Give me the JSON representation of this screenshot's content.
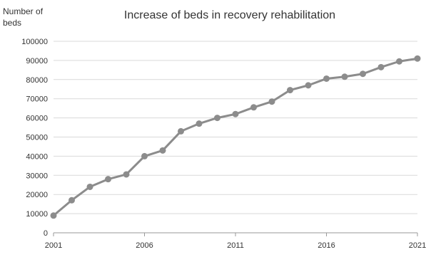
{
  "chart_data": {
    "type": "line",
    "title": "Increase of beds in recovery rehabilitation",
    "ylabel_lines": [
      "Number of",
      "beds"
    ],
    "xlabel": "",
    "ylim": [
      0,
      100000
    ],
    "y_ticks": [
      0,
      10000,
      20000,
      30000,
      40000,
      50000,
      60000,
      70000,
      80000,
      90000,
      100000
    ],
    "x_ticks": [
      2001,
      2006,
      2011,
      2016,
      2021
    ],
    "xlim": [
      2001,
      2021
    ],
    "grid": true,
    "legend": "none",
    "series": [
      {
        "color": "#8c8c8c",
        "x": [
          2001,
          2002,
          2003,
          2004,
          2005,
          2006,
          2007,
          2008,
          2009,
          2010,
          2011,
          2012,
          2013,
          2014,
          2015,
          2016,
          2017,
          2018,
          2019,
          2020,
          2021
        ],
        "values": [
          9000,
          17000,
          24000,
          28000,
          30500,
          40000,
          43000,
          53000,
          57000,
          60000,
          62000,
          65500,
          68500,
          74500,
          77000,
          80500,
          81500,
          83000,
          86500,
          89500,
          91000
        ]
      }
    ]
  }
}
